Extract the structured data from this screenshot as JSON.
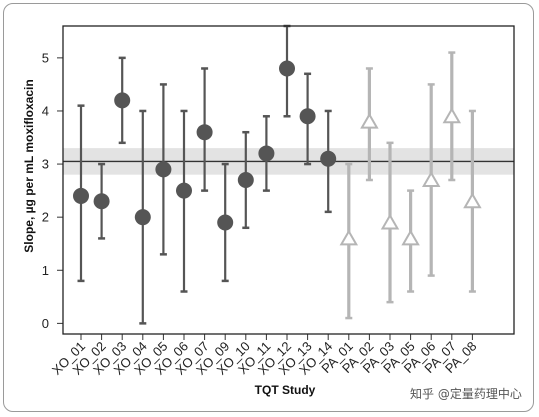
{
  "chart_data": {
    "type": "scatter",
    "xlabel": "TQT Study",
    "ylabel": "Slope, µg per mL moxifloxacin",
    "ylim": [
      -0.2,
      5.6
    ],
    "yticks": [
      0,
      1,
      2,
      3,
      4,
      5
    ],
    "reference_line": {
      "value": 3.05,
      "band": [
        2.8,
        3.3
      ]
    },
    "grid": false,
    "legend": "none",
    "colors": {
      "xo": "#555555",
      "pa": "#b5b5b5",
      "band": "#e3e3e3",
      "line": "#333333"
    },
    "series": [
      {
        "marker": "circle",
        "categories": [
          "XO_01",
          "XO_02",
          "XO_03",
          "XO_04",
          "XO_05",
          "XO_06",
          "XO_07",
          "XO_09",
          "XO_10",
          "XO_11",
          "XO_12",
          "XO_13",
          "XO_14"
        ],
        "estimate": [
          2.4,
          2.3,
          4.2,
          2.0,
          2.9,
          2.5,
          3.6,
          1.9,
          2.7,
          3.2,
          4.8,
          3.9,
          3.1
        ],
        "lower": [
          0.8,
          1.6,
          3.4,
          0.0,
          1.3,
          0.6,
          2.5,
          0.8,
          1.8,
          2.5,
          3.9,
          3.0,
          2.1
        ],
        "upper": [
          4.1,
          3.0,
          5.0,
          4.0,
          4.5,
          4.0,
          4.8,
          3.0,
          3.6,
          3.9,
          5.6,
          4.7,
          4.0
        ]
      },
      {
        "marker": "triangle",
        "categories": [
          "PA_01",
          "PA_02",
          "PA_03",
          "PA_05",
          "PA_06",
          "PA_07",
          "PA_08"
        ],
        "estimate": [
          1.6,
          3.8,
          1.9,
          1.6,
          2.7,
          3.9,
          2.3
        ],
        "lower": [
          0.1,
          2.7,
          0.4,
          0.6,
          0.9,
          2.7,
          0.6
        ],
        "upper": [
          3.0,
          4.8,
          3.4,
          2.5,
          4.5,
          5.1,
          4.0
        ]
      }
    ]
  },
  "watermark": "知乎 @定量药理中心"
}
